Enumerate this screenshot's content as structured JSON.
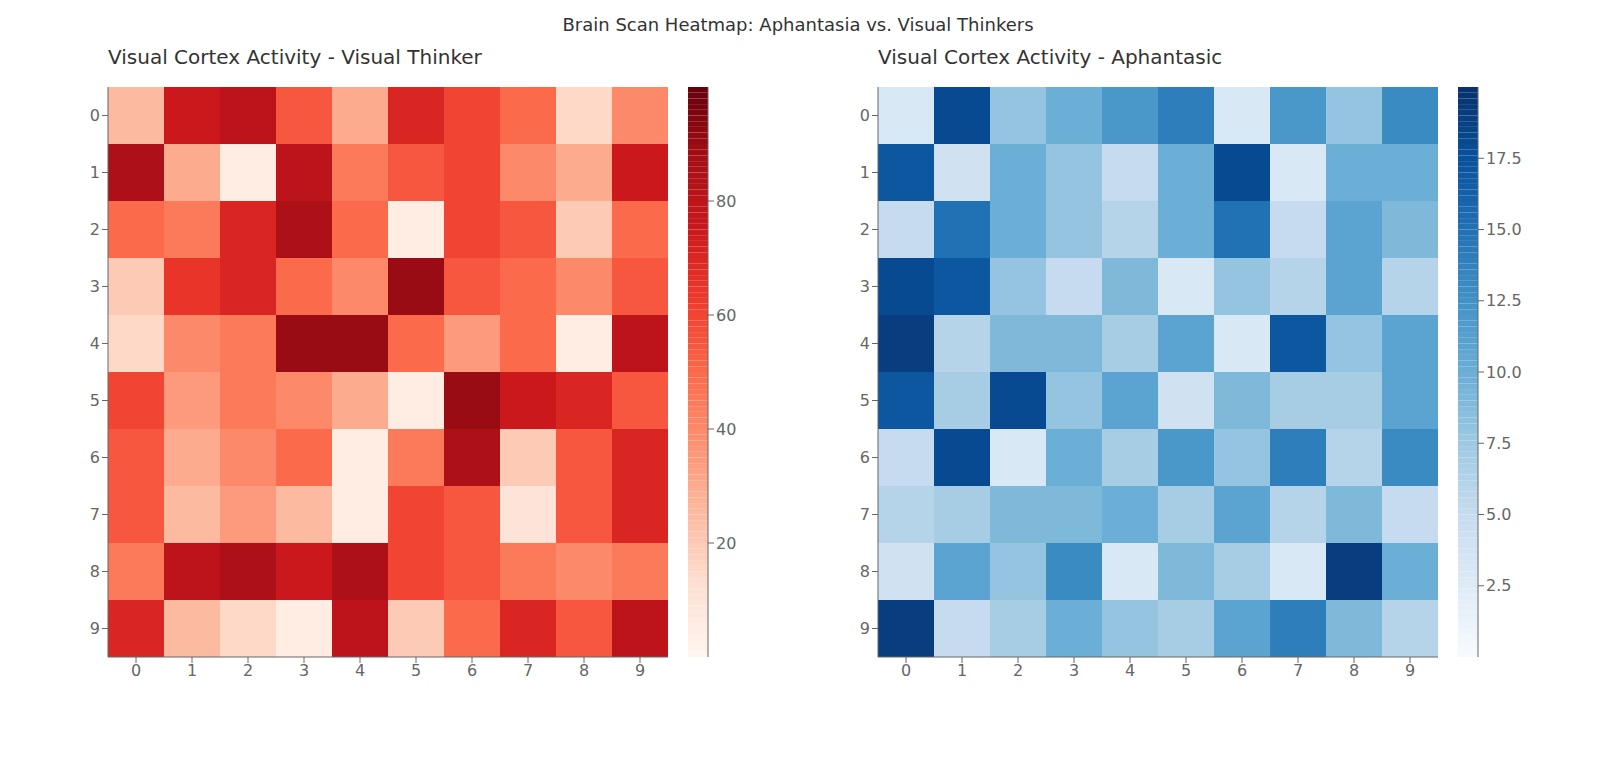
{
  "title": "Brain Scan Heatmap: Aphantasia vs. Visual Thinkers",
  "chart_data": [
    {
      "type": "heatmap",
      "title": "Visual Cortex Activity - Visual Thinker",
      "values": [
        [
          25,
          75,
          80,
          55,
          30,
          70,
          60,
          50,
          15,
          40
        ],
        [
          85,
          30,
          5,
          80,
          45,
          55,
          60,
          40,
          30,
          75
        ],
        [
          50,
          45,
          70,
          85,
          50,
          5,
          60,
          55,
          20,
          50
        ],
        [
          20,
          65,
          70,
          50,
          40,
          90,
          55,
          50,
          40,
          55
        ],
        [
          15,
          40,
          45,
          90,
          90,
          50,
          35,
          50,
          5,
          80
        ],
        [
          60,
          35,
          45,
          40,
          30,
          5,
          90,
          75,
          70,
          55
        ],
        [
          55,
          30,
          40,
          50,
          5,
          45,
          85,
          20,
          55,
          70
        ],
        [
          55,
          25,
          35,
          25,
          5,
          60,
          55,
          10,
          55,
          70
        ],
        [
          45,
          80,
          85,
          75,
          85,
          60,
          55,
          45,
          40,
          45
        ],
        [
          70,
          25,
          15,
          5,
          80,
          20,
          50,
          70,
          55,
          80
        ]
      ],
      "color": "Reds",
      "xlim": [
        -0.5,
        9.5
      ],
      "ylim": [
        9.5,
        -0.5
      ],
      "xticks": [
        0,
        1,
        2,
        3,
        4,
        5,
        6,
        7,
        8,
        9
      ],
      "yticks": [
        0,
        1,
        2,
        3,
        4,
        5,
        6,
        7,
        8,
        9
      ],
      "colorbar_range": [
        0,
        100
      ],
      "colorbar_ticks": [
        20,
        40,
        60,
        80
      ]
    },
    {
      "type": "heatmap",
      "title": "Visual Cortex Activity - Aphantasic",
      "values": [
        [
          3,
          18,
          8,
          10,
          12,
          14,
          3,
          12,
          8,
          13
        ],
        [
          17,
          4,
          10,
          8,
          5,
          10,
          18,
          3,
          10,
          10
        ],
        [
          5,
          15,
          10,
          8,
          6,
          10,
          15,
          5,
          11,
          9
        ],
        [
          18,
          17,
          8,
          5,
          9,
          3,
          8,
          6,
          11,
          6
        ],
        [
          19,
          6,
          9,
          9,
          7,
          11,
          3,
          17,
          8,
          11
        ],
        [
          17,
          7,
          18,
          8,
          11,
          4,
          9,
          7,
          7,
          11
        ],
        [
          5,
          18,
          3,
          10,
          7,
          12,
          8,
          14,
          6,
          13
        ],
        [
          6,
          7,
          9,
          9,
          10,
          7,
          11,
          6,
          9,
          5
        ],
        [
          4,
          11,
          8,
          13,
          3,
          9,
          7,
          3,
          19,
          10
        ],
        [
          19,
          5,
          7,
          10,
          8,
          7,
          11,
          14,
          9,
          6
        ]
      ],
      "color": "Blues",
      "xlim": [
        -0.5,
        9.5
      ],
      "ylim": [
        9.5,
        -0.5
      ],
      "xticks": [
        0,
        1,
        2,
        3,
        4,
        5,
        6,
        7,
        8,
        9
      ],
      "yticks": [
        0,
        1,
        2,
        3,
        4,
        5,
        6,
        7,
        8,
        9
      ],
      "colorbar_range": [
        0,
        20
      ],
      "colorbar_ticks": [
        2.5,
        {
          "value": 5,
          "label": "5.0"
        },
        7.5,
        {
          "value": 10,
          "label": "10.0"
        },
        12.5,
        {
          "value": 15,
          "label": "15.0"
        },
        17.5
      ]
    }
  ]
}
